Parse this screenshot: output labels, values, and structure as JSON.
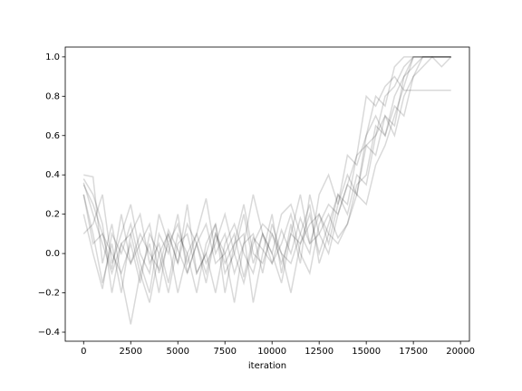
{
  "chart_data": {
    "type": "line",
    "xlabel": "iteration",
    "x": [
      0,
      500,
      1000,
      1500,
      2000,
      2500,
      3000,
      3500,
      4000,
      4500,
      5000,
      5500,
      6000,
      6500,
      7000,
      7500,
      8000,
      8500,
      9000,
      9500,
      10000,
      10500,
      11000,
      11500,
      12000,
      12500,
      13000,
      13500,
      14000,
      14500,
      15000,
      15500,
      16000,
      16500,
      17000,
      17500,
      18000,
      18500,
      19000,
      19500
    ],
    "series": [
      {
        "color": "#000000",
        "values": [
          0.36,
          0.2,
          0.05,
          -0.1,
          0.05,
          -0.05,
          0.1,
          0.0,
          -0.08,
          0.12,
          0.02,
          -0.1,
          0.05,
          0.15,
          -0.05,
          0.0,
          0.1,
          -0.12,
          0.08,
          0.02,
          -0.05,
          0.12,
          0.0,
          0.18,
          0.05,
          0.1,
          0.2,
          0.08,
          0.15,
          0.3,
          0.25,
          0.45,
          0.55,
          0.7,
          0.85,
          1.0,
          1.0,
          1.0,
          1.0,
          1.0
        ]
      },
      {
        "color": "#000000",
        "values": [
          0.3,
          0.1,
          -0.15,
          0.05,
          -0.2,
          0.1,
          0.2,
          -0.05,
          0.05,
          -0.15,
          0.1,
          0.0,
          -0.2,
          0.05,
          0.15,
          -0.1,
          0.0,
          0.2,
          -0.05,
          0.1,
          0.0,
          -0.15,
          0.1,
          0.05,
          0.2,
          0.0,
          0.15,
          0.3,
          0.2,
          0.4,
          0.35,
          0.6,
          0.7,
          0.65,
          0.9,
          0.95,
          1.0,
          1.0,
          1.0,
          1.0
        ]
      },
      {
        "color": "#000000",
        "values": [
          0.4,
          0.39,
          -0.05,
          0.15,
          -0.12,
          -0.36,
          -0.1,
          0.05,
          -0.2,
          0.1,
          -0.05,
          0.25,
          -0.1,
          0.0,
          0.15,
          -0.2,
          0.05,
          0.1,
          -0.25,
          0.0,
          0.2,
          -0.1,
          0.15,
          -0.05,
          0.3,
          0.1,
          0.0,
          0.2,
          0.35,
          0.5,
          0.8,
          0.75,
          0.85,
          0.9,
          0.83,
          0.83,
          0.83,
          0.83,
          0.83,
          0.83
        ]
      },
      {
        "color": "#000000",
        "values": [
          0.1,
          0.15,
          0.3,
          -0.05,
          0.1,
          0.25,
          0.0,
          -0.1,
          0.2,
          0.05,
          0.15,
          -0.05,
          0.1,
          0.28,
          0.0,
          0.1,
          -0.1,
          0.05,
          0.3,
          0.1,
          0.0,
          0.2,
          0.25,
          0.1,
          0.0,
          0.3,
          0.4,
          0.25,
          0.5,
          0.45,
          0.6,
          0.8,
          0.75,
          0.95,
          1.0,
          1.0,
          1.0,
          1.0,
          1.0,
          1.0
        ]
      },
      {
        "color": "#000000",
        "values": [
          0.35,
          0.25,
          0.1,
          0.0,
          -0.1,
          0.05,
          -0.15,
          0.1,
          0.0,
          -0.2,
          0.05,
          0.1,
          -0.1,
          0.0,
          -0.2,
          0.05,
          0.15,
          0.0,
          -0.1,
          0.1,
          -0.05,
          0.05,
          0.2,
          0.0,
          -0.1,
          0.15,
          0.25,
          0.2,
          0.35,
          0.3,
          0.55,
          0.5,
          0.7,
          0.6,
          0.8,
          0.9,
          1.0,
          1.0,
          1.0,
          1.0
        ]
      },
      {
        "color": "#000000",
        "values": [
          0.2,
          0.0,
          -0.18,
          0.1,
          0.0,
          0.15,
          -0.05,
          -0.2,
          0.1,
          0.0,
          0.2,
          -0.1,
          0.05,
          -0.15,
          0.1,
          0.0,
          -0.25,
          0.05,
          0.1,
          -0.1,
          0.15,
          0.0,
          -0.05,
          0.1,
          0.25,
          -0.05,
          0.1,
          0.05,
          0.15,
          0.35,
          0.4,
          0.65,
          0.6,
          0.75,
          0.7,
          0.9,
          0.95,
          1.0,
          1.0,
          1.0
        ]
      },
      {
        "color": "#000000",
        "values": [
          0.3,
          0.05,
          0.1,
          -0.08,
          0.2,
          -0.05,
          0.05,
          0.15,
          -0.1,
          0.05,
          -0.2,
          0.0,
          0.1,
          -0.05,
          0.05,
          0.2,
          0.0,
          -0.15,
          0.05,
          0.15,
          0.1,
          -0.05,
          0.1,
          0.3,
          0.05,
          0.2,
          0.1,
          0.3,
          0.25,
          0.5,
          0.55,
          0.6,
          0.8,
          0.85,
          0.95,
          1.0,
          1.0,
          1.0,
          1.0,
          1.0
        ]
      },
      {
        "color": "#000000",
        "values": [
          0.38,
          0.3,
          0.15,
          -0.2,
          0.05,
          0.1,
          -0.1,
          -0.25,
          0.0,
          0.1,
          -0.05,
          0.15,
          0.05,
          -0.1,
          0.1,
          -0.05,
          0.05,
          0.25,
          0.0,
          -0.05,
          0.1,
          0.0,
          -0.2,
          0.05,
          0.15,
          0.2,
          0.05,
          0.25,
          0.4,
          0.3,
          0.6,
          0.7,
          0.6,
          0.8,
          0.9,
          1.0,
          1.0,
          1.0,
          0.95,
          1.0
        ]
      }
    ],
    "alpha": 0.15,
    "xlim": [
      -975,
      20475
    ],
    "ylim": [
      -0.446,
      1.05
    ],
    "xticks": [
      0,
      2500,
      5000,
      7500,
      10000,
      12500,
      15000,
      17500,
      20000
    ],
    "yticks": [
      {
        "value": -0.4,
        "label": "−0.4"
      },
      {
        "value": -0.2,
        "label": "−0.2"
      },
      {
        "value": 0.0,
        "label": "0.0"
      },
      0.2,
      0.4,
      0.6,
      0.8,
      {
        "value": 1.0,
        "label": "1.0"
      }
    ]
  }
}
